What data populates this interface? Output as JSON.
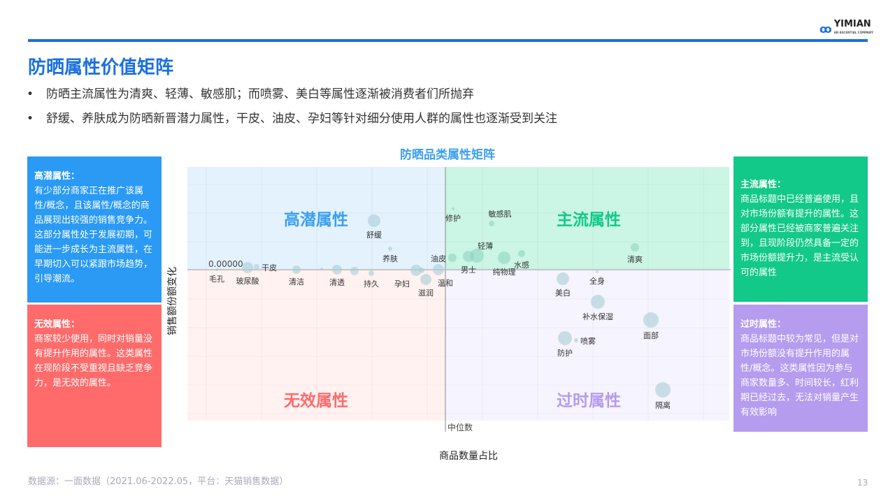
{
  "header": {
    "logo_text": "YIMIAN",
    "logo_sub": "AN ASCENTIAL COMPANY",
    "title": "防晒属性价值矩阵"
  },
  "bullets": [
    "防晒主流属性为清爽、轻薄、敏感肌；而喷雾、美白等属性逐渐被消费者们所抛弃",
    "舒缓、养肤成为防晒新晋潜力属性，干皮、油皮、孕妇等针对细分使用人群的属性也逐渐受到关注"
  ],
  "boxes": {
    "potential": {
      "title": "高潜属性：",
      "text": "有少部分商家正在推广该属性/概念，且该属性/概念的商品展现出较强的销售竞争力。这部分属性处于发展初期，可能进一步成长为主流属性，在早期切入可以紧跟市场趋势，引导潮流。",
      "color": "#2a9af5"
    },
    "invalid": {
      "title": "无效属性：",
      "text": "商家较少使用，同时对销量没有提升作用的属性。这类属性在现阶段不受重视且缺乏竞争力，是无效的属性。",
      "color": "#ff6b6b"
    },
    "mainstream": {
      "title": "主流属性：",
      "text": "商品标题中已经普遍使用，且对市场份额有提升的属性。这部分属性已经被商家普遍关注到，且现阶段仍然具备一定的市场份额提升力，是主流受认可的属性",
      "color": "#12c98a"
    },
    "outdated": {
      "title": "过时属性：",
      "text": "商品标题中较为常见，但是对市场份额没有提升作用的属性/概念。这类属性因为参与商家数量多、时间较长，红利期已经过去，无法对销量产生有效影响",
      "color": "#b59cef"
    }
  },
  "chart_data": {
    "type": "scatter",
    "title": "防晒品类属性矩阵",
    "xlabel": "商品数量占比",
    "ylabel": "销售额份额变化",
    "x_reference_label": "中位数",
    "y_reference_label": "0.00000",
    "xlim": [
      -3.69,
      4.06
    ],
    "ylim": [
      -2.16,
      1.47
    ],
    "grid": true,
    "quadrants": [
      {
        "label": "高潜属性",
        "color": "#3aa0f0",
        "bg": "#e4f2fe"
      },
      {
        "label": "主流属性",
        "color": "#12c98a",
        "bg": "#cbf5e5"
      },
      {
        "label": "无效属性",
        "color": "#ff6b6b",
        "bg": "#fff2f1"
      },
      {
        "label": "过时属性",
        "color": "#b59cef",
        "bg": "#f6f4fe"
      }
    ],
    "points": [
      {
        "label": "舒缓",
        "x": -1.02,
        "y": 0.7,
        "size": 9,
        "pos": "below"
      },
      {
        "label": "养肤",
        "x": -0.79,
        "y": 0.3,
        "size": 3,
        "pos": "below"
      },
      {
        "label": "修护",
        "x": 0.11,
        "y": 0.87,
        "size": 2,
        "pos": "below"
      },
      {
        "label": "敏感肌",
        "x": 0.66,
        "y": 0.66,
        "size": 4,
        "pos": "aboveright"
      },
      {
        "label": "油皮",
        "x": 0.1,
        "y": 0.17,
        "size": 6,
        "pos": "left"
      },
      {
        "label": "男士",
        "x": 0.33,
        "y": 0.19,
        "size": 8,
        "pos": "below"
      },
      {
        "label": "轻薄",
        "x": 0.45,
        "y": 0.2,
        "size": 10,
        "pos": "aboveright"
      },
      {
        "label": "纯物理",
        "x": 0.84,
        "y": 0.17,
        "size": 9,
        "pos": "below"
      },
      {
        "label": "水感",
        "x": 1.09,
        "y": 0.23,
        "size": 5,
        "pos": "below"
      },
      {
        "label": "清爽",
        "x": 2.71,
        "y": 0.32,
        "size": 6,
        "pos": "below"
      },
      {
        "label": "温和",
        "x": -0.1,
        "y": 0.0,
        "size": 8,
        "pos": "belowright"
      },
      {
        "label": "滋润",
        "x": -0.28,
        "y": -0.14,
        "size": 8,
        "pos": "below"
      },
      {
        "label": "孕妇",
        "x": -0.42,
        "y": -0.01,
        "size": 8,
        "pos": "belowleft"
      },
      {
        "label": "",
        "x": -0.34,
        "y": -0.01,
        "size": 4,
        "pos": "below"
      },
      {
        "label": "持久",
        "x": -1.06,
        "y": -0.05,
        "size": 4,
        "pos": "below"
      },
      {
        "label": "",
        "x": -1.3,
        "y": -0.02,
        "size": 6,
        "pos": "below"
      },
      {
        "label": "清透",
        "x": -1.55,
        "y": 0.0,
        "size": 7,
        "pos": "below"
      },
      {
        "label": "",
        "x": -1.77,
        "y": 0.01,
        "size": 2,
        "pos": "below"
      },
      {
        "label": "清洁",
        "x": -2.13,
        "y": 0.0,
        "size": 6,
        "pos": "below"
      },
      {
        "label": "干皮",
        "x": -2.7,
        "y": 0.04,
        "size": 4,
        "pos": "right"
      },
      {
        "label": "玻尿酸",
        "x": -2.83,
        "y": 0.03,
        "size": 8,
        "pos": "below"
      },
      {
        "label": "毛孔",
        "x": -3.27,
        "y": 0.0,
        "size": 2,
        "pos": "below"
      },
      {
        "label": "美白",
        "x": 1.68,
        "y": -0.13,
        "size": 9,
        "pos": "below"
      },
      {
        "label": "全身",
        "x": 2.17,
        "y": -0.03,
        "size": 2,
        "pos": "below"
      },
      {
        "label": "补水保湿",
        "x": 2.18,
        "y": -0.46,
        "size": 10,
        "pos": "below"
      },
      {
        "label": "面部",
        "x": 2.94,
        "y": -0.72,
        "size": 11,
        "pos": "below"
      },
      {
        "label": "防护",
        "x": 1.71,
        "y": -0.98,
        "size": 10,
        "pos": "below"
      },
      {
        "label": "喷雾",
        "x": 1.87,
        "y": -1.01,
        "size": 3,
        "pos": "right"
      },
      {
        "label": "隔离",
        "x": 3.11,
        "y": -1.72,
        "size": 11,
        "pos": "below"
      }
    ]
  },
  "footer": {
    "source": "数据源：一面数据（2021.06-2022.05，平台：天猫销售数据）",
    "page": "13"
  }
}
